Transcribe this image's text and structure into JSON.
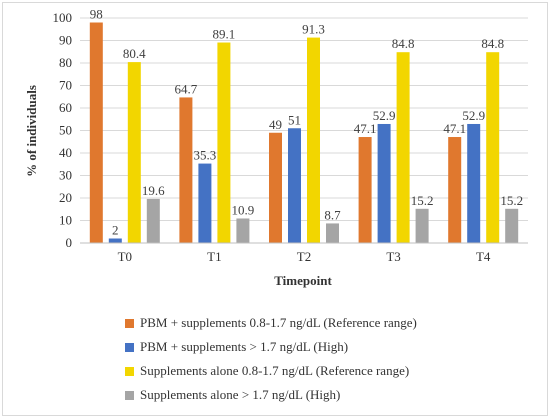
{
  "chart_data": {
    "type": "bar",
    "xlabel": "Timepoint",
    "ylabel": "% of individuals",
    "ylim": [
      0,
      100
    ],
    "yticks": [
      0,
      10,
      20,
      30,
      40,
      50,
      60,
      70,
      80,
      90,
      100
    ],
    "categories": [
      "T0",
      "T1",
      "T2",
      "T3",
      "T4"
    ],
    "grid": true,
    "legend_position": "bottom",
    "series": [
      {
        "name": "PBM + supplements 0.8-1.7 ng/dL (Reference range)",
        "color": "#E0782E",
        "values": [
          98,
          64.7,
          49,
          47.1,
          47.1
        ]
      },
      {
        "name": "PBM + supplements > 1.7 ng/dL (High)",
        "color": "#4472C4",
        "values": [
          2,
          35.3,
          51,
          52.9,
          52.9
        ]
      },
      {
        "name": "Supplements alone 0.8-1.7 ng/dL (Reference range)",
        "color": "#F2D600",
        "values": [
          80.4,
          89.1,
          91.3,
          84.8,
          84.8
        ]
      },
      {
        "name": "Supplements alone > 1.7 ng/dL (High)",
        "color": "#A5A5A5",
        "values": [
          19.6,
          10.9,
          8.7,
          15.2,
          15.2
        ]
      }
    ]
  }
}
